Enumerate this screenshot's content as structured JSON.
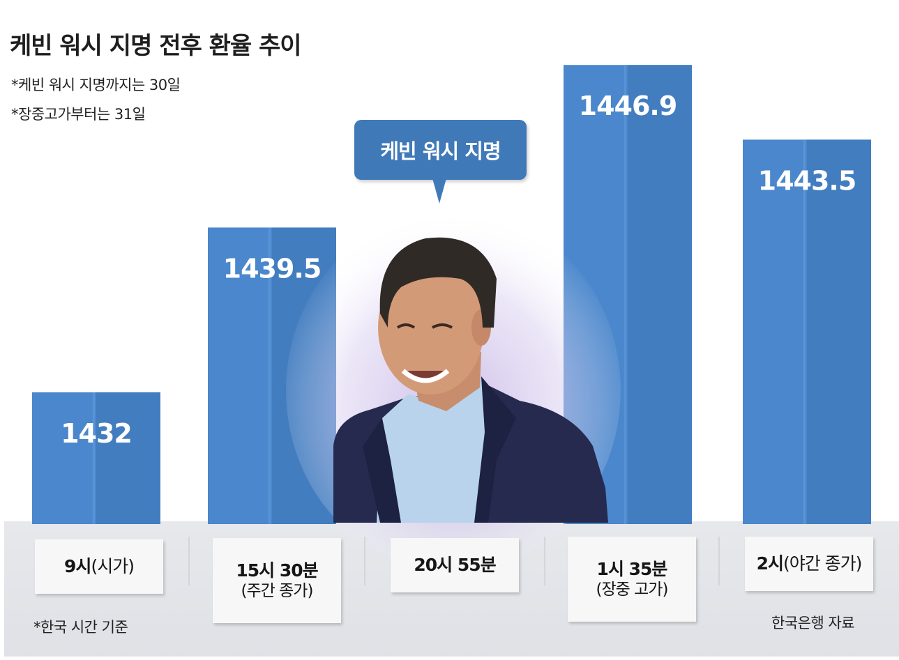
{
  "title": "케빈 워시 지명 전후 환율 추이",
  "notes": [
    "*케빈 워시 지명까지는 30일",
    "*장중고가부터는 31일"
  ],
  "callout": "케빈 워시 지명",
  "footnote_left": "*한국 시간 기준",
  "source": "한국은행 자료",
  "colors": {
    "bar": "#4b87cc",
    "bar_dark": "#3c74b6",
    "callout": "#3f79b8"
  },
  "photo": "person-photo-icon",
  "chart_data": {
    "type": "bar",
    "title": "케빈 워시 지명 전후 환율 추이",
    "categories": [
      {
        "main": "9시",
        "sub": "(시가)",
        "inline": true
      },
      {
        "main": "15시 30분",
        "sub": "(주간 종가)",
        "inline": false
      },
      {
        "main": "20시 55분",
        "sub": "",
        "inline": false
      },
      {
        "main": "1시 35분",
        "sub": "(장중 고가)",
        "inline": false
      },
      {
        "main": "2시",
        "sub": "(야간 종가)",
        "inline": true
      }
    ],
    "values": [
      1432,
      1439.5,
      null,
      1446.9,
      1443.5
    ],
    "labels": [
      "1432",
      "1439.5",
      "",
      "1446.9",
      "1443.5"
    ],
    "xlabel": "",
    "ylabel": "",
    "ylim": [
      1426,
      1449
    ]
  }
}
